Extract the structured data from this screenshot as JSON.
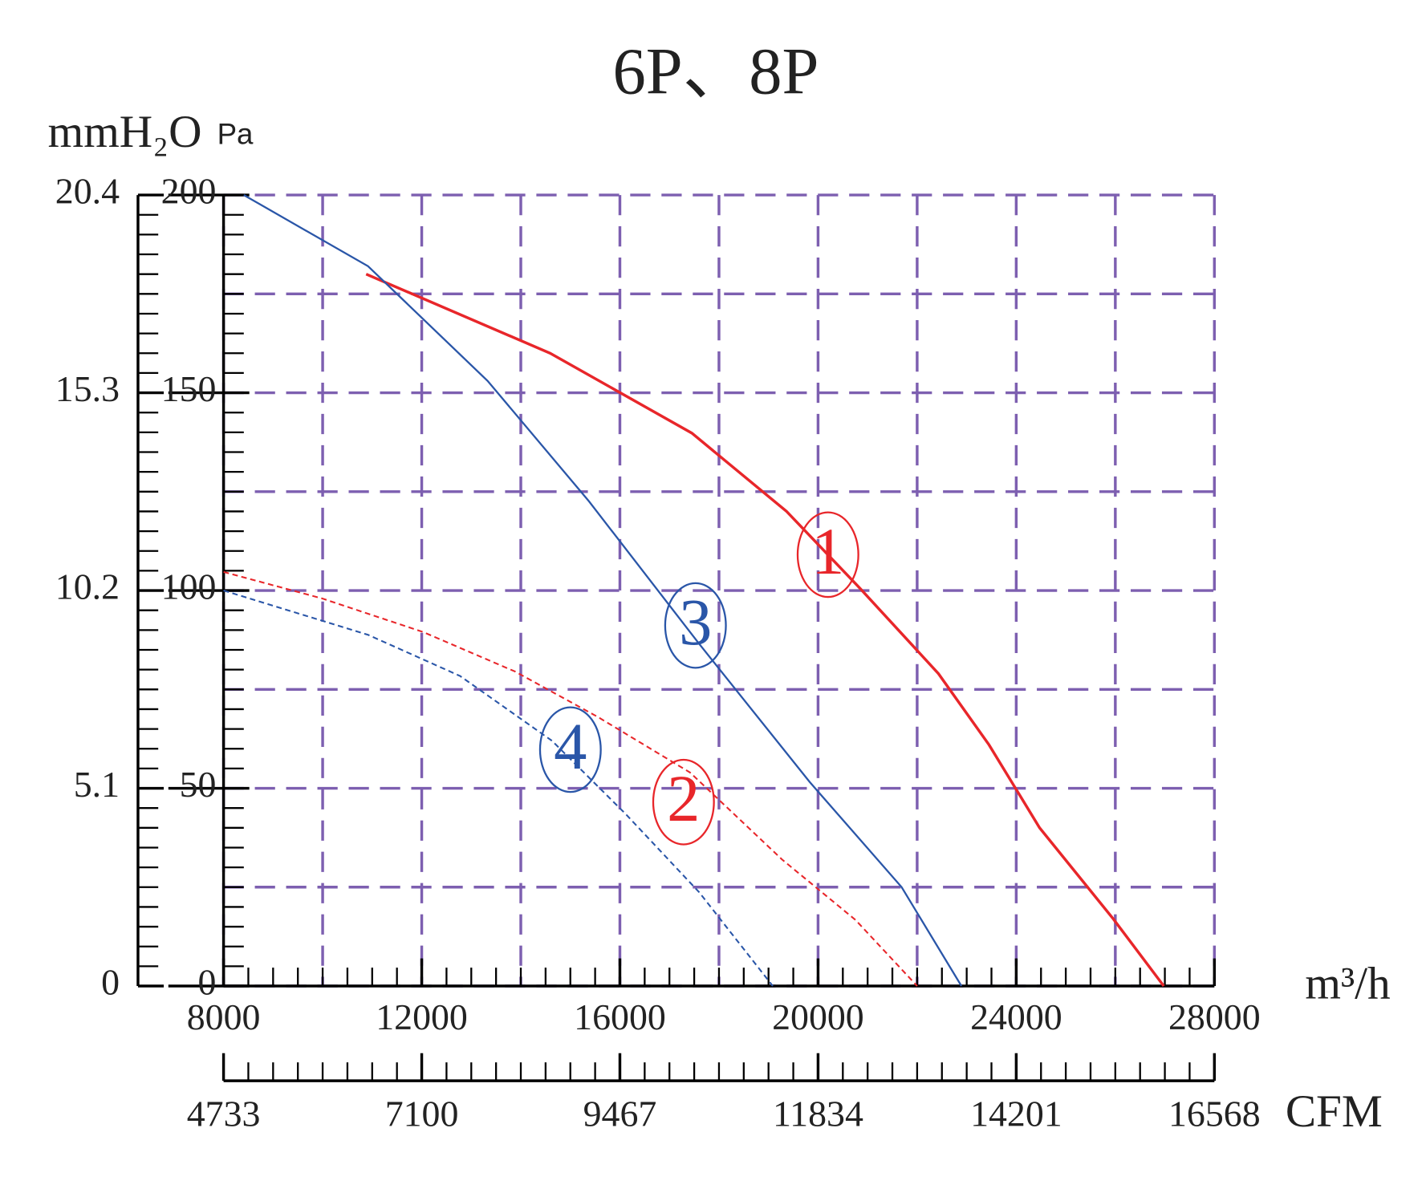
{
  "chart_data": {
    "type": "line",
    "title": "6P、8P",
    "x_label": "m³/h",
    "y_label": "Pa",
    "y2_label": "mmH₂O",
    "x2_label": "CFM",
    "xlim": [
      8000,
      28000
    ],
    "xticks": [
      8000,
      12000,
      16000,
      20000,
      24000,
      28000
    ],
    "xgrid": [
      8000,
      10000,
      12000,
      14000,
      16000,
      18000,
      20000,
      22000,
      24000,
      26000,
      28000
    ],
    "ylim": [
      0,
      200
    ],
    "yticks": [
      0,
      50,
      100,
      150,
      200
    ],
    "ygrid": [
      0,
      25,
      50,
      75,
      100,
      125,
      150,
      175,
      200
    ],
    "y2lim": [
      0,
      20.4
    ],
    "y2ticks": [
      0,
      5.1,
      10.2,
      15.3,
      20.4
    ],
    "x2lim": [
      4733,
      16568
    ],
    "x2ticks": [
      4733,
      7100,
      9467,
      11834,
      14201,
      16568
    ],
    "grid": true,
    "grid_color": "#7d5fb0",
    "series": [
      {
        "name": "1",
        "color": "#e8262a",
        "style": "solid",
        "x": [
          10878,
          14592,
          17452,
          19365,
          20850,
          22429,
          23450,
          24472,
          25957,
          26978
        ],
        "values": [
          180,
          160,
          139.8,
          120,
          100.5,
          79,
          61,
          40,
          17,
          0
        ]
      },
      {
        "name": "2",
        "color": "#e8262a",
        "style": "dashed",
        "x": [
          8000,
          9987,
          12030,
          13887,
          15559,
          17415,
          19272,
          20757,
          22000
        ],
        "values": [
          104.7,
          98,
          89.5,
          79.5,
          68,
          54,
          32,
          16.7,
          0
        ]
      },
      {
        "name": "3",
        "color": "#2a56a8",
        "style": "solid",
        "x": [
          8409,
          10916,
          13330,
          15373,
          17601,
          19830,
          21687,
          22894
        ],
        "values": [
          200,
          182,
          153,
          122.6,
          86.5,
          51.6,
          25,
          0
        ]
      },
      {
        "name": "4",
        "color": "#2a56a8",
        "style": "dashed",
        "x": [
          8000,
          10916,
          12773,
          14630,
          16116,
          17601,
          19086
        ],
        "values": [
          100,
          88.8,
          78.4,
          62,
          43.5,
          23.7,
          0
        ]
      }
    ]
  }
}
